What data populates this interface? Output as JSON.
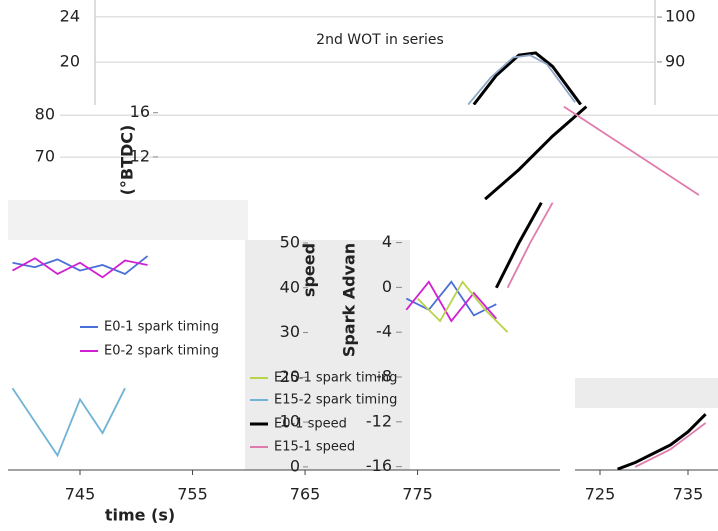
{
  "chart_data": [
    {
      "type": "line",
      "title": "2nd WOT in series",
      "xlim": [
        738.6,
        801.7
      ],
      "ylim": [
        16.2,
        25.5
      ],
      "yticks": [
        20,
        24
      ],
      "y2lim": [
        80.4,
        103.8
      ],
      "y2ticks": [
        90,
        100
      ],
      "grid": true,
      "series": [
        {
          "color": "#000000",
          "axis": "y2",
          "x": [
            780,
            782,
            784,
            785.5,
            787,
            789.5
          ],
          "values": [
            80.5,
            87,
            91.5,
            92,
            89,
            80.5
          ]
        },
        {
          "color": "#8fa8c8",
          "axis": "y2",
          "x": [
            779.5,
            781.5,
            783.5,
            785,
            786.5,
            789
          ],
          "values": [
            80.5,
            86.5,
            91,
            91.5,
            89.5,
            81
          ]
        }
      ]
    },
    {
      "type": "line",
      "xlim": [
        738.6,
        801.7
      ],
      "ylim": [
        59.8,
        82.4
      ],
      "yticks": [
        70,
        80
      ],
      "y2lim": [
        8.1,
        16.7
      ],
      "y2ticks": [
        12,
        16
      ],
      "y2label": "(°BTDC)",
      "grid": true,
      "series": [
        {
          "color": "#000000",
          "x": [
            781,
            784,
            787,
            790
          ],
          "values": [
            60,
            67,
            75,
            82
          ]
        },
        {
          "color": "#e07cab",
          "x": [
            788,
            792,
            796,
            800
          ],
          "values": [
            82,
            75,
            68,
            61
          ]
        }
      ]
    },
    {
      "type": "line",
      "xlim": [
        738.6,
        801.7
      ],
      "xticks": [
        745,
        755,
        765,
        775
      ],
      "xlabel": "time (s)",
      "ylim": [
        -16.3,
        7.8
      ],
      "yticks": [
        -16,
        -12,
        -8,
        -4,
        0,
        4
      ],
      "ylabel": "Spark Advan",
      "y2lim": [
        -0.7,
        59.6
      ],
      "y2ticks": [
        0,
        10,
        20,
        30,
        40,
        50
      ],
      "y2label": "speed",
      "series": [
        {
          "name": "E0-1 spark timing",
          "color": "#4a6fd6",
          "x": [
            739,
            741,
            743,
            745,
            747,
            749,
            751,
            760,
            774,
            776,
            778,
            780,
            782
          ],
          "values": [
            2.2,
            1.8,
            2.5,
            1.5,
            2,
            1.2,
            2.8,
            null,
            -1,
            -2,
            0.5,
            -2.5,
            -1.5
          ]
        },
        {
          "name": "E0-2 spark timing",
          "color": "#d11fd1",
          "x": [
            739,
            741,
            743,
            745,
            747,
            749,
            751,
            760,
            774,
            776,
            778,
            780,
            782
          ],
          "values": [
            1.5,
            2.6,
            1.2,
            2.2,
            0.9,
            2.4,
            2,
            null,
            -2,
            0.5,
            -3,
            -0.5,
            -2.8
          ]
        },
        {
          "name": "E15-1 spark timing",
          "color": "#b8d44a",
          "x": [
            775,
            777,
            779,
            781,
            783
          ],
          "values": [
            -1,
            -3,
            0.5,
            -2,
            -4
          ]
        },
        {
          "name": "E15-2 spark timing",
          "color": "#6fb3d6",
          "x": [
            739,
            741,
            743,
            745,
            747,
            749
          ],
          "values": [
            -9,
            -12,
            -15,
            -10,
            -13,
            -9
          ]
        },
        {
          "name": "E0-1 speed",
          "color": "#000000",
          "axis": "y2",
          "x": [
            782,
            784,
            786
          ],
          "values": [
            40,
            50,
            59
          ]
        },
        {
          "name": "E15-1 speed",
          "color": "#e07cab",
          "axis": "y2",
          "x": [
            783,
            785,
            787
          ],
          "values": [
            40,
            50,
            59
          ]
        }
      ]
    },
    {
      "type": "line",
      "xlim": [
        722.2,
        738.4
      ],
      "xticks": [
        725,
        735
      ],
      "ylim": [
        -0.7,
        19.8
      ],
      "series": [
        {
          "color": "#000000",
          "x": [
            727,
            729,
            731,
            733,
            735,
            737
          ],
          "values": [
            -0.5,
            1,
            3,
            5,
            8,
            12
          ]
        },
        {
          "color": "#e07cab",
          "x": [
            729,
            731,
            733,
            735,
            737
          ],
          "values": [
            0,
            2,
            4,
            7,
            10
          ]
        }
      ]
    }
  ]
}
